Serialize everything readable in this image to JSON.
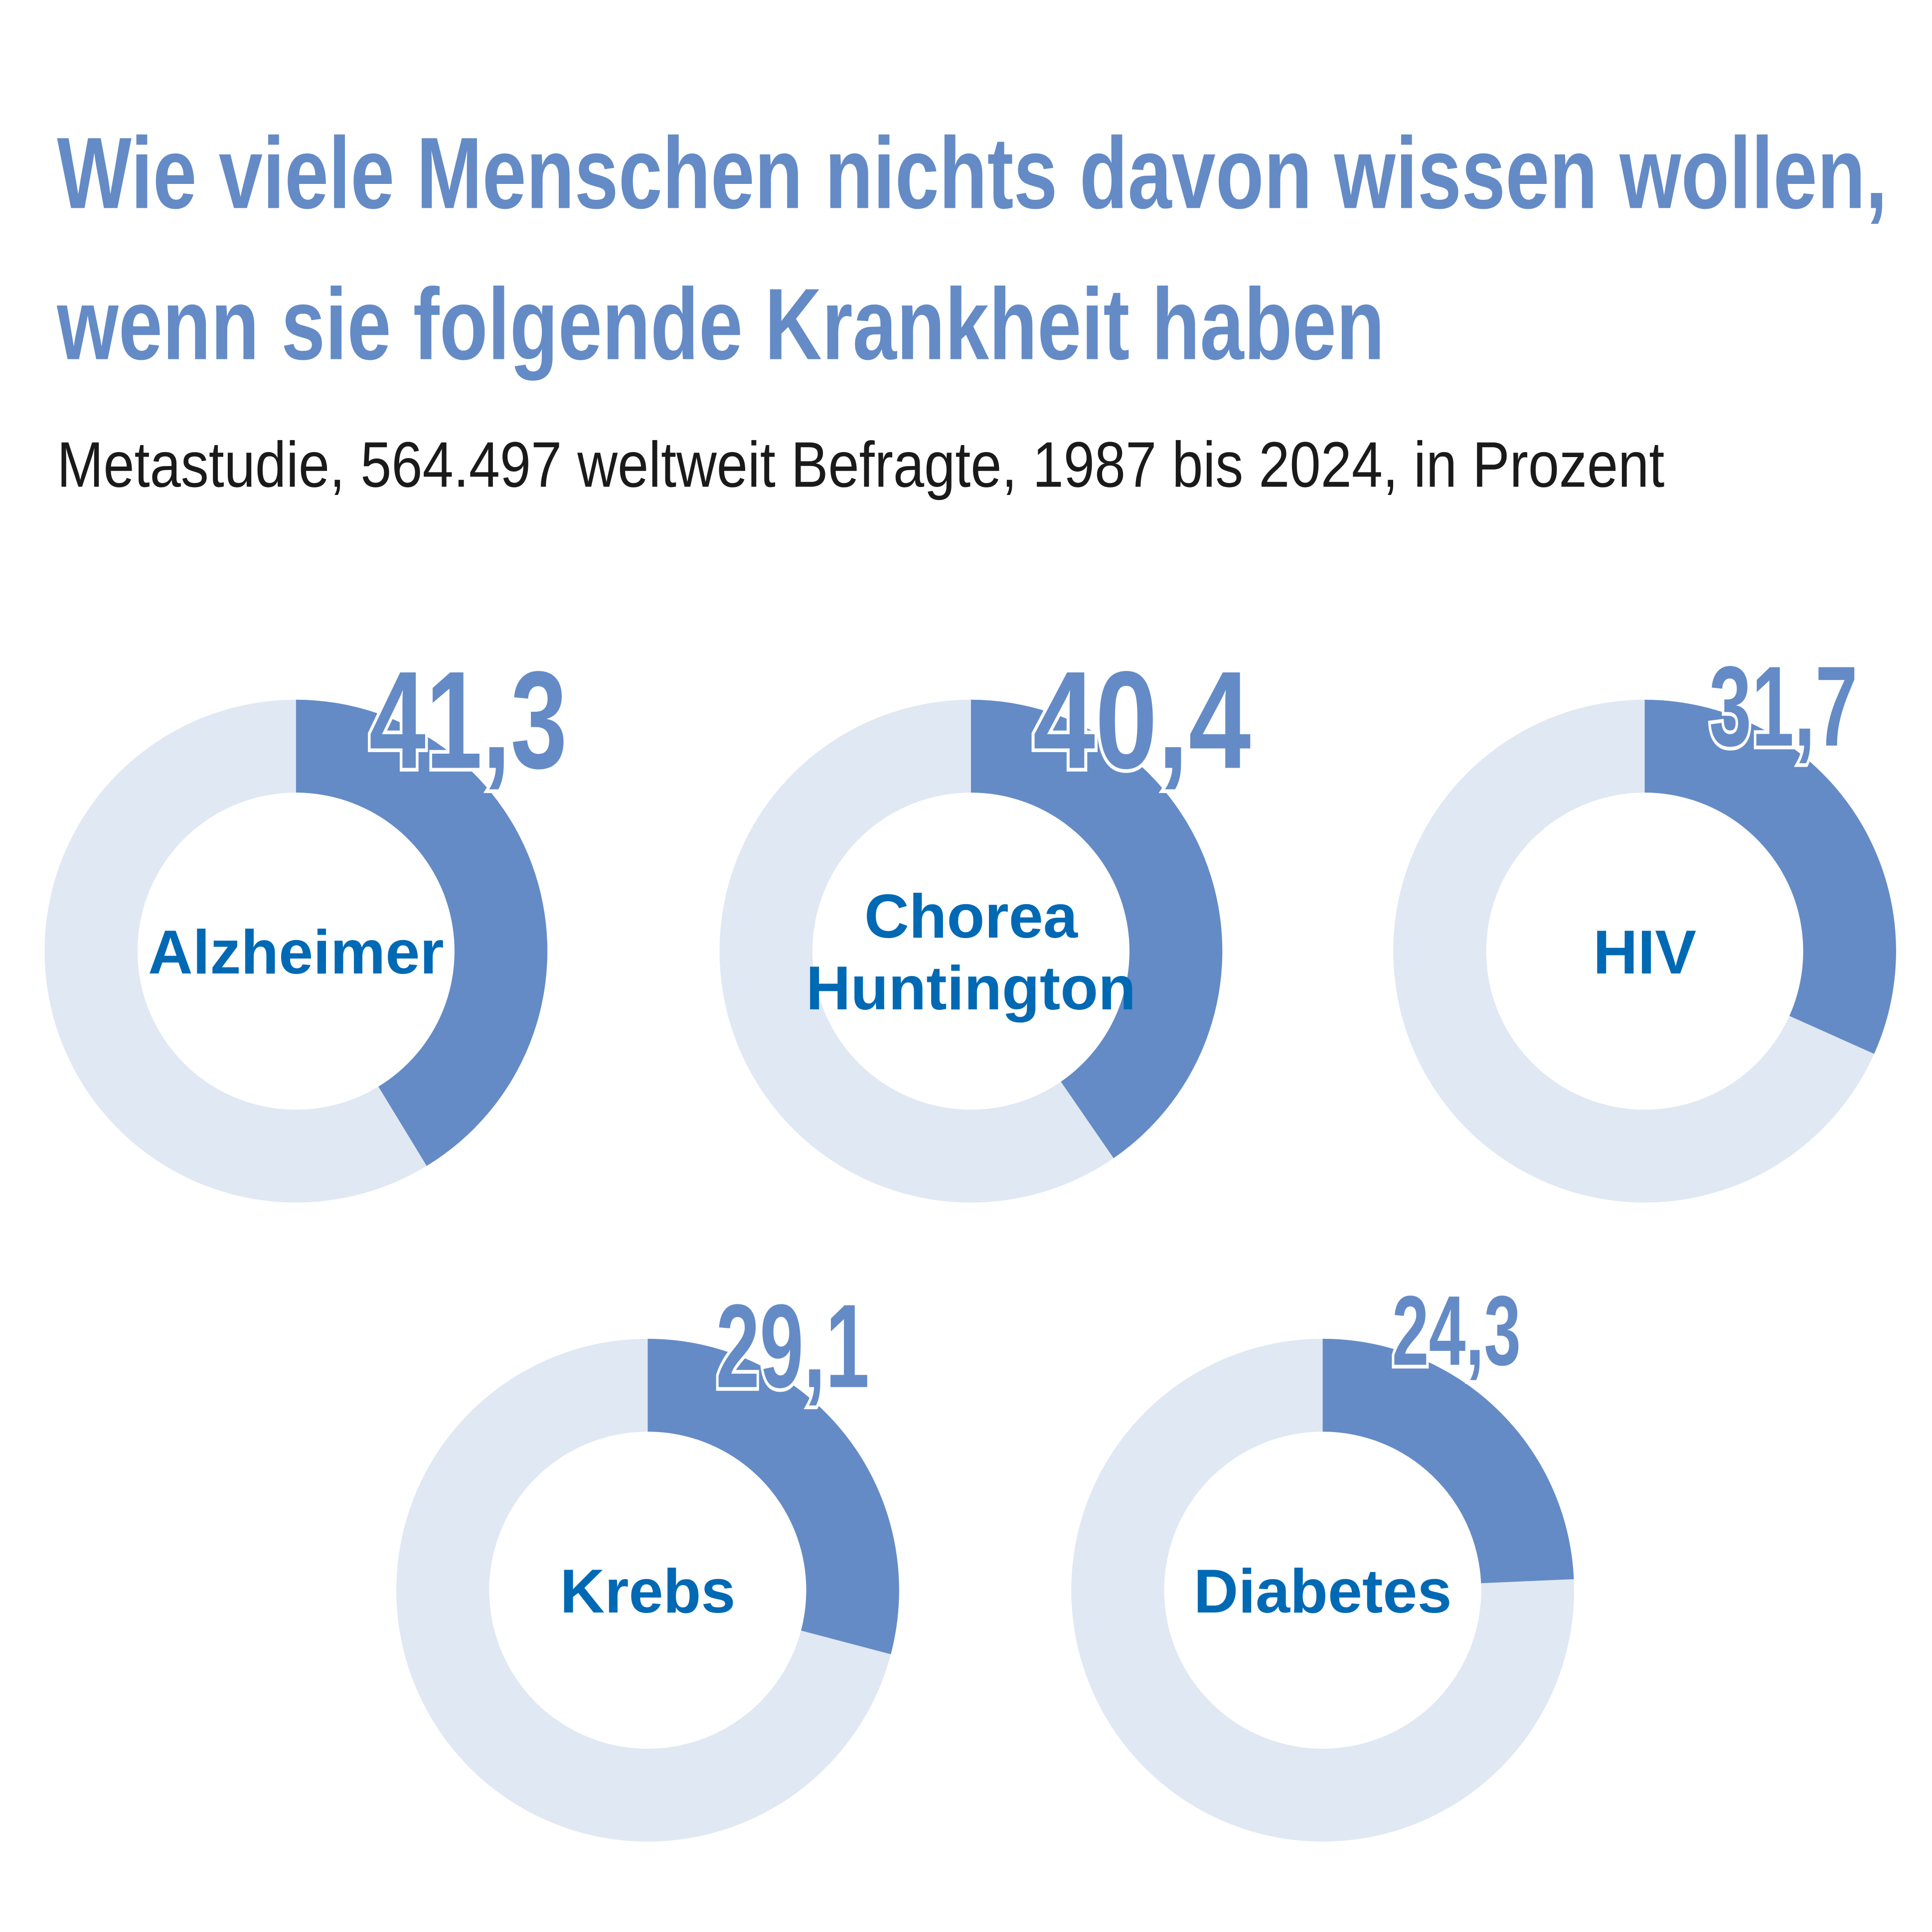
{
  "title_line1": "Wie viele Menschen nichts  davon wissen wollen,",
  "title_line2": "wenn sie folgende Krankheit haben",
  "subtitle": "Metastudie, 564.497 weltweit Befragte, 1987 bis 2024, in Prozent",
  "colors": {
    "value": "#648bc6",
    "remainder": "#e0e8f3",
    "label": "#0069b4",
    "title": "#648bc6"
  },
  "chart_data": {
    "type": "pie",
    "variant": "donut",
    "unit": "Prozent",
    "series": [
      {
        "name": "Alzheimer",
        "label_lines": [
          "Alzheimer"
        ],
        "value": 41.3,
        "value_text": "41,3"
      },
      {
        "name": "Chorea Huntington",
        "label_lines": [
          "Chorea",
          "Huntington"
        ],
        "value": 40.4,
        "value_text": "40,4"
      },
      {
        "name": "HIV",
        "label_lines": [
          "HIV"
        ],
        "value": 31.7,
        "value_text": "31,7"
      },
      {
        "name": "Krebs",
        "label_lines": [
          "Krebs"
        ],
        "value": 29.1,
        "value_text": "29,1"
      },
      {
        "name": "Diabetes",
        "label_lines": [
          "Diabetes"
        ],
        "value": 24.3,
        "value_text": "24,3"
      }
    ]
  }
}
